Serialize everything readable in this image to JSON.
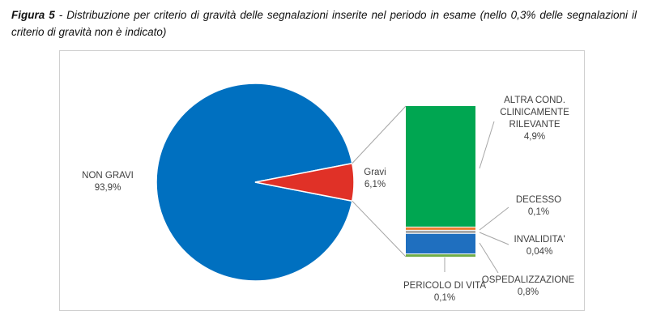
{
  "caption": {
    "label": "Figura 5",
    "text": " - Distribuzione per criterio di gravità delle segnalazioni inserite nel periodo in esame (nello 0,3% delle segnalazioni il criterio di gravità non è indicato)"
  },
  "chart_data": {
    "type": "pie",
    "title": "",
    "pie": {
      "slices": [
        {
          "label": "NON GRAVI",
          "value_label": "93,9%",
          "value": 93.9,
          "color": "#0070C0"
        },
        {
          "label": "Gravi",
          "value_label": "6,1%",
          "value": 6.1,
          "color": "#E03127"
        }
      ]
    },
    "breakdown": {
      "of": "Gravi",
      "type": "stacked-bar",
      "segments": [
        {
          "label": "ALTRA COND. CLINICAMENTE RILEVANTE",
          "label_lines": [
            "ALTRA COND.",
            "CLINICAMENTE",
            "RILEVANTE"
          ],
          "value_label": "4,9%",
          "value": 4.9,
          "color": "#00A651"
        },
        {
          "label": "DECESSO",
          "label_lines": [
            "DECESSO"
          ],
          "value_label": "0,1%",
          "value": 0.1,
          "color": "#ED7D31"
        },
        {
          "label": "INVALIDITA'",
          "label_lines": [
            "INVALIDITA'"
          ],
          "value_label": "0,04%",
          "value": 0.04,
          "color": "#A5A5A5"
        },
        {
          "label": "OSPEDALIZZAZIONE",
          "label_lines": [
            "OSPEDALIZZAZIONE"
          ],
          "value_label": "0,8%",
          "value": 0.8,
          "color": "#1F6FBF"
        },
        {
          "label": "PERICOLO DI VITA",
          "label_lines": [
            "PERICOLO DI VITA"
          ],
          "value_label": "0,1%",
          "value": 0.1,
          "color": "#70AD47"
        }
      ]
    }
  }
}
